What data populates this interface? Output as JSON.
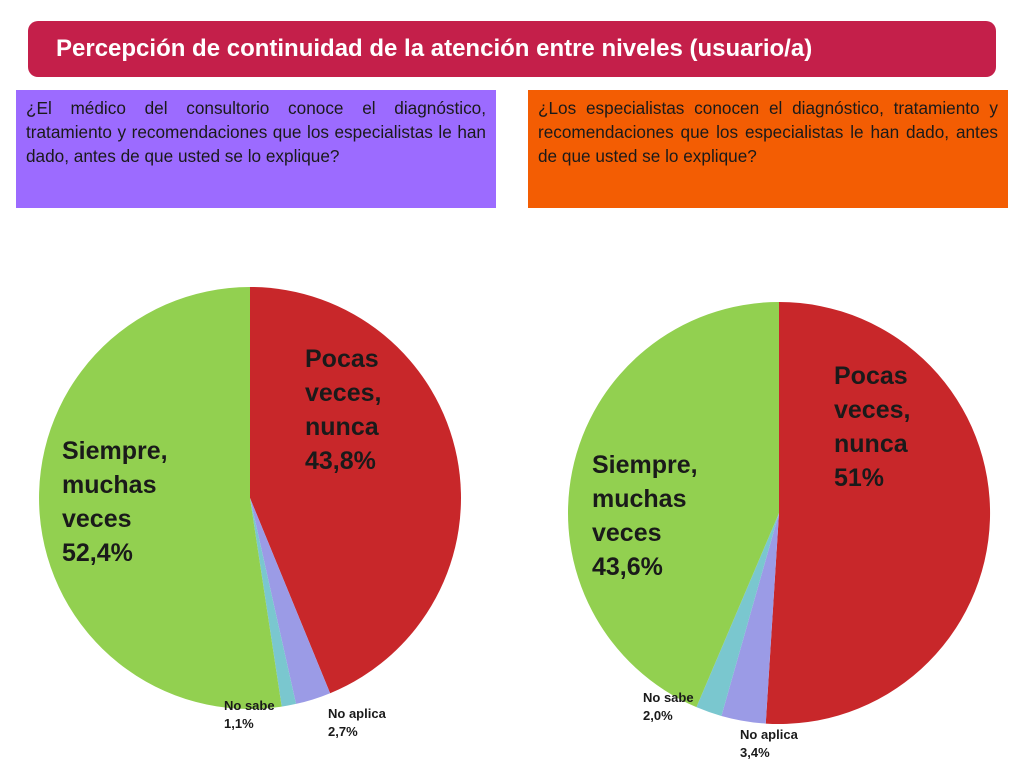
{
  "title": "Percepción de continuidad de la atención entre niveles (usuario/a)",
  "questions": {
    "left": "¿El médico del consultorio conoce el diagnóstico, tratamiento y recomendaciones que los especialistas le han dado, antes de que usted se lo explique?",
    "right": "¿Los especialistas conocen el diagnóstico, tratamiento y recomendaciones que los especialistas le han dado, antes de que usted se lo explique?"
  },
  "colors": {
    "title_bg": "#c41f4a",
    "left_box": "#9c6bff",
    "right_box": "#f35d03",
    "red": "#c8272a",
    "green": "#92d050",
    "teal": "#7ac7cf",
    "lavender": "#9b9be6"
  },
  "chart_data": [
    {
      "type": "pie",
      "slices": [
        {
          "label_lines": [
            "Pocas",
            "veces,",
            "nunca",
            "43,8%"
          ],
          "value": 43.8,
          "color": "#c8272a"
        },
        {
          "label_lines": [
            "No aplica",
            "2,7%"
          ],
          "value": 2.7,
          "color": "#9b9be6"
        },
        {
          "label_lines": [
            "No sabe",
            "1,1%"
          ],
          "value": 1.1,
          "color": "#7ac7cf"
        },
        {
          "label_lines": [
            "Siempre,",
            "muchas",
            "veces",
            "52,4%"
          ],
          "value": 52.4,
          "color": "#92d050"
        }
      ]
    },
    {
      "type": "pie",
      "slices": [
        {
          "label_lines": [
            "Pocas",
            "veces,",
            "nunca",
            "51%"
          ],
          "value": 51,
          "color": "#c8272a"
        },
        {
          "label_lines": [
            "No aplica",
            "3,4%"
          ],
          "value": 3.4,
          "color": "#9b9be6"
        },
        {
          "label_lines": [
            "No sabe",
            "2,0%"
          ],
          "value": 2.0,
          "color": "#7ac7cf"
        },
        {
          "label_lines": [
            "Siempre,",
            "muchas",
            "veces",
            "43,6%"
          ],
          "value": 43.6,
          "color": "#92d050"
        }
      ]
    }
  ]
}
